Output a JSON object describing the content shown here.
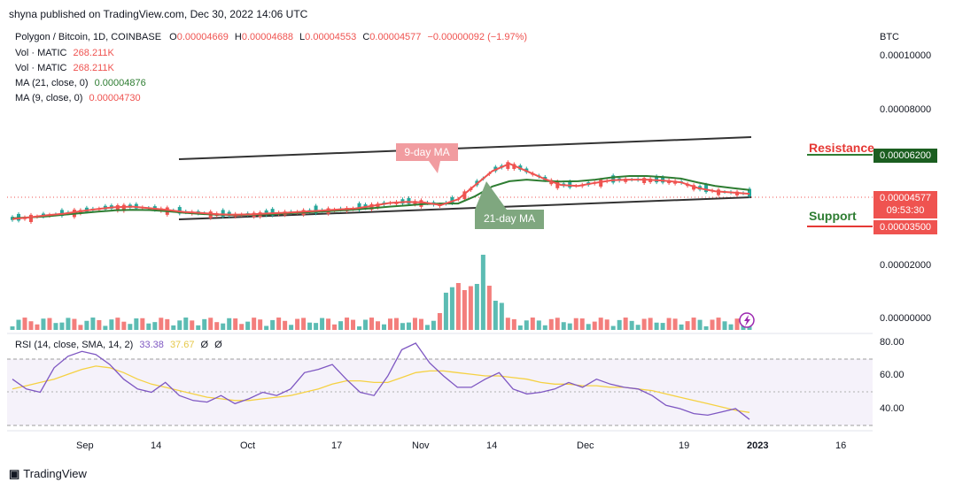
{
  "publisher": "shyna published on TradingView.com, Dec 30, 2022 14:06 UTC",
  "legend": {
    "symbol": "Polygon / Bitcoin, 1D, COINBASE",
    "o_label": "O",
    "o_value": "0.00004669",
    "h_label": "H",
    "h_value": "0.00004688",
    "l_label": "L",
    "l_value": "0.00004553",
    "c_label": "C",
    "c_value": "0.00004577",
    "change": "−0.00000092 (−1.97%)",
    "vol1_label": "Vol · MATIC",
    "vol1_value": "268.211K",
    "vol2_label": "Vol · MATIC",
    "vol2_value": "268.211K",
    "ma21_label": "MA (21, close, 0)",
    "ma21_value": "0.00004876",
    "ma9_label": "MA (9, close, 0)",
    "ma9_value": "0.00004730"
  },
  "currency": "BTC",
  "price_axis": [
    "0.00010000",
    "0.00008000",
    "0.00002000",
    "0.00000000"
  ],
  "tags": {
    "resistance_value": "0.00006200",
    "last_price": "0.00004577",
    "countdown": "09:53:30",
    "support_value": "0.00003500"
  },
  "annotations": {
    "ma9": "9-day MA",
    "ma21": "21-day MA",
    "resistance": "Resistance",
    "support": "Support"
  },
  "rsi": {
    "label": "RSI (14, close, SMA, 14, 2)",
    "rsi_value": "33.38",
    "sma_value": "37.67",
    "na1": "Ø",
    "na2": "Ø",
    "axis": [
      "80.00",
      "60.00",
      "40.00"
    ]
  },
  "time_axis": [
    "Sep",
    "14",
    "Oct",
    "17",
    "Nov",
    "14",
    "Dec",
    "19",
    "2023",
    "16"
  ],
  "footer": {
    "brand": "TradingView"
  },
  "colors": {
    "up": "#26a69a",
    "down": "#ef5350",
    "ma21": "#2e7d32",
    "ma9": "#ef5350",
    "rsi": "#7e57c2",
    "rsi_sma": "#f5d142"
  },
  "chart_data": [
    {
      "type": "line",
      "title": "Polygon / Bitcoin, 1D, COINBASE",
      "ylabel": "BTC",
      "ylim": [
        0,
        0.0001
      ],
      "x_ticks": [
        "Sep",
        "14",
        "Oct",
        "17",
        "Nov",
        "14",
        "Dec",
        "19",
        "2023",
        "16"
      ],
      "series": [
        {
          "name": "MA (9, close, 0)",
          "values": [
            3.77e-05,
            3.83e-05,
            3.91e-05,
            3.97e-05,
            4.07e-05,
            4.15e-05,
            4.22e-05,
            4.24e-05,
            4.18e-05,
            4.12e-05,
            4.04e-05,
            4e-05,
            3.95e-05,
            3.93e-05,
            3.95e-05,
            3.98e-05,
            4.01e-05,
            4.05e-05,
            4.09e-05,
            4.13e-05,
            4.17e-05,
            4.27e-05,
            4.38e-05,
            4.42e-05,
            4.4e-05,
            4.3e-05,
            4.52e-05,
            5.06e-05,
            5.6e-05,
            5.88e-05,
            5.6e-05,
            5.31e-05,
            5.07e-05,
            5.03e-05,
            5.15e-05,
            5.25e-05,
            5.27e-05,
            5.27e-05,
            5.23e-05,
            5.17e-05,
            4.95e-05,
            4.83e-05,
            4.78e-05,
            4.73e-05
          ]
        },
        {
          "name": "MA (21, close, 0)",
          "values": [
            3.8e-05,
            3.83e-05,
            3.87e-05,
            3.93e-05,
            3.99e-05,
            4.05e-05,
            4.1e-05,
            4.12e-05,
            4.11e-05,
            4.07e-05,
            4.01e-05,
            3.96e-05,
            3.93e-05,
            3.92e-05,
            3.93e-05,
            3.95e-05,
            3.98e-05,
            4.02e-05,
            4.05e-05,
            4.09e-05,
            4.13e-05,
            4.18e-05,
            4.24e-05,
            4.29e-05,
            4.34e-05,
            4.36e-05,
            4.36e-05,
            4.64e-05,
            5.01e-05,
            5.21e-05,
            5.27e-05,
            5.22e-05,
            5.2e-05,
            5.21e-05,
            5.27e-05,
            5.36e-05,
            5.41e-05,
            5.41e-05,
            5.37e-05,
            5.31e-05,
            5.16e-05,
            5.03e-05,
            4.95e-05,
            4.88e-05
          ]
        }
      ]
    },
    {
      "type": "line",
      "title": "RSI (14, close, SMA, 14, 2)",
      "ylim": [
        30,
        80
      ],
      "series": [
        {
          "name": "RSI",
          "values": [
            58,
            52,
            50,
            65,
            72,
            75,
            73,
            67,
            58,
            52,
            50,
            56,
            48,
            45,
            44,
            48,
            43,
            46,
            50,
            48,
            52,
            62,
            64,
            67,
            58,
            50,
            48,
            60,
            76,
            80,
            68,
            60,
            53,
            53,
            58,
            62,
            52,
            49,
            50,
            52,
            56,
            53,
            58,
            55,
            53,
            52,
            48,
            42,
            40,
            37,
            36,
            38,
            40,
            33.38
          ]
        },
        {
          "name": "SMA",
          "values": [
            52,
            54,
            56,
            58,
            61,
            64,
            66,
            65,
            62,
            58,
            55,
            53,
            51,
            49,
            47,
            46,
            45,
            45,
            46,
            47,
            48,
            50,
            52,
            55,
            57,
            57,
            56,
            56,
            59,
            62,
            63,
            63,
            62,
            61,
            60,
            60,
            59,
            58,
            56,
            55,
            55,
            54,
            54,
            53,
            53,
            52,
            51,
            49,
            47,
            45,
            43,
            41,
            39,
            37.67
          ]
        }
      ]
    }
  ]
}
